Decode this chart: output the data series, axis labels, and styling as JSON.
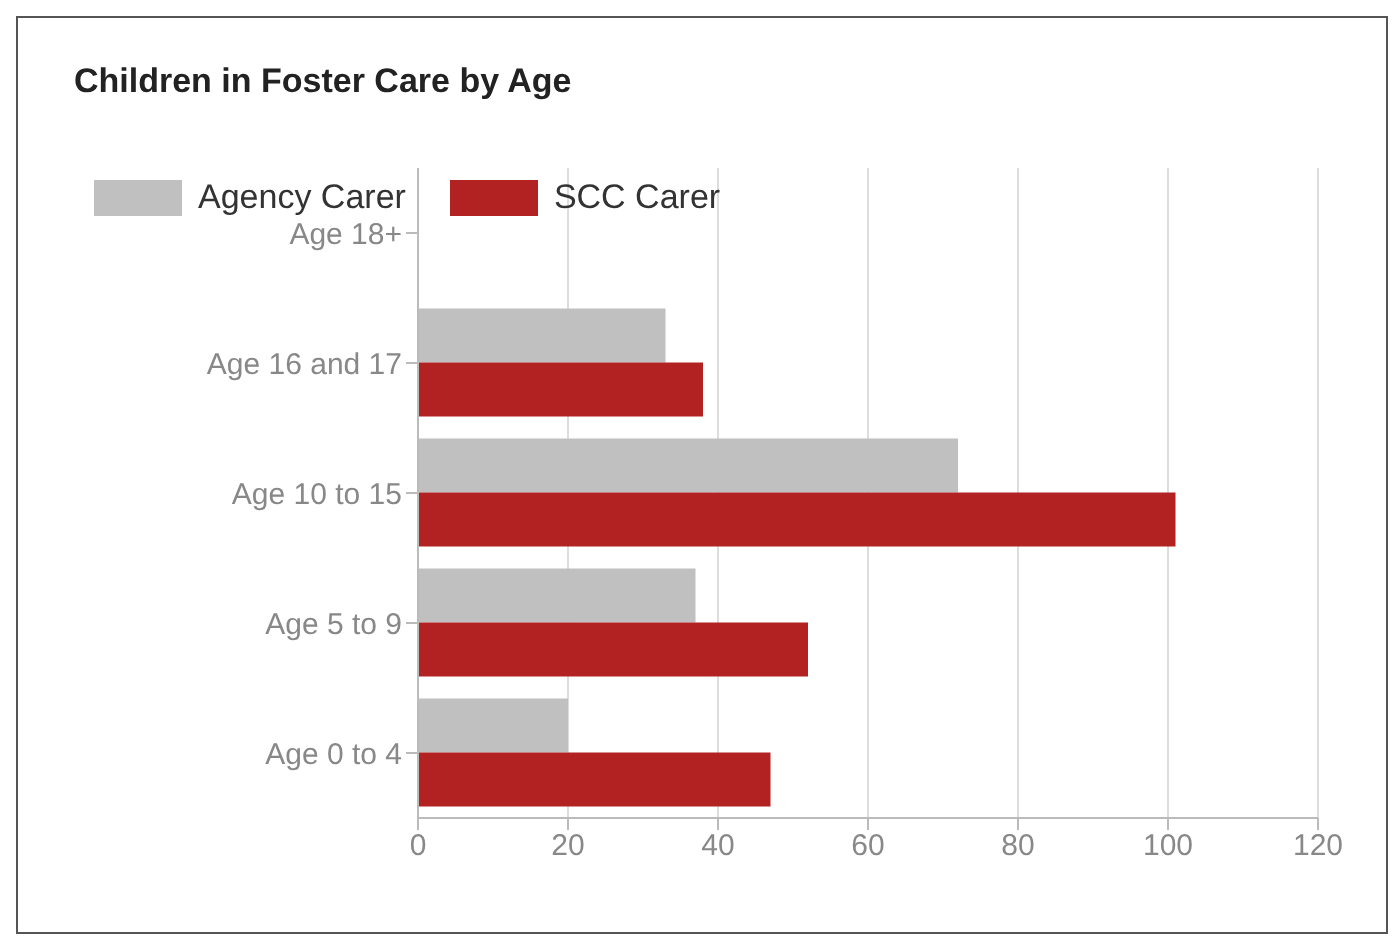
{
  "chart_data": {
    "type": "bar",
    "orientation": "horizontal",
    "title": "Children in Foster Care by Age",
    "categories": [
      "Age 18+",
      "Age 16 and 17",
      "Age 10 to 15",
      "Age 5 to 9",
      "Age 0 to 4"
    ],
    "series": [
      {
        "name": "Agency Carer",
        "color": "#c0c0c0",
        "values": [
          null,
          33,
          72,
          37,
          20
        ]
      },
      {
        "name": "SCC Carer",
        "color": "#b22222",
        "values": [
          null,
          38,
          101,
          52,
          47
        ]
      }
    ],
    "xlim": [
      0,
      120
    ],
    "xticks": [
      0,
      20,
      40,
      60,
      80,
      100,
      120
    ],
    "grid": "x",
    "legend": "top left"
  }
}
